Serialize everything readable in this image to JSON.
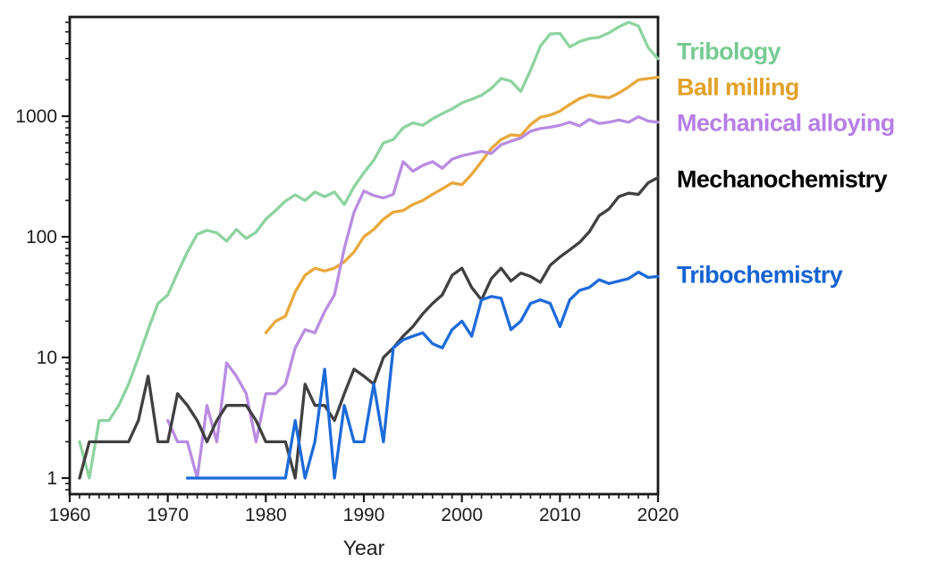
{
  "figure": {
    "background": "#ffffff"
  },
  "chart_data": {
    "type": "line",
    "title": "",
    "xlabel": "Year",
    "ylabel": "",
    "x_axis": {
      "min": 1960,
      "max": 2020,
      "major_ticks": [
        1960,
        1970,
        1980,
        1990,
        2000,
        2010,
        2020
      ],
      "major_tick_labels": [
        "1960",
        "1970",
        "1980",
        "1990",
        "2000",
        "2010",
        "2020"
      ],
      "minor_tick_interval_years": 1
    },
    "y_axis": {
      "scale": "log",
      "min": 0.74,
      "max": 6600,
      "major_ticks": [
        1,
        10,
        100,
        1000
      ],
      "major_tick_labels": [
        "1",
        "10",
        "100",
        "1000"
      ],
      "grid": false
    },
    "legend_position": "right-outside",
    "series": [
      {
        "name": "Tribology",
        "color": "#8dd3a0",
        "legend_color": "#76cb93",
        "start_year": 1961,
        "values": [
          2,
          1,
          3,
          3,
          4,
          6,
          10,
          17,
          28,
          33,
          50,
          75,
          105,
          113,
          108,
          92,
          115,
          97,
          109,
          140,
          165,
          198,
          223,
          200,
          235,
          215,
          235,
          185,
          260,
          340,
          430,
          600,
          640,
          800,
          880,
          840,
          950,
          1050,
          1150,
          1290,
          1380,
          1490,
          1700,
          2050,
          1950,
          1600,
          2400,
          3800,
          4800,
          4850,
          3750,
          4150,
          4400,
          4500,
          4900,
          5500,
          6000,
          5600,
          3700,
          3000
        ]
      },
      {
        "name": "Ball milling",
        "color": "#e7a83a",
        "legend_color": "#e1a128",
        "start_year": 1980,
        "values": [
          16,
          20,
          22,
          35,
          48,
          55,
          52,
          55,
          62,
          75,
          100,
          115,
          140,
          160,
          165,
          185,
          200,
          225,
          250,
          280,
          270,
          330,
          420,
          540,
          640,
          700,
          690,
          850,
          980,
          1020,
          1100,
          1250,
          1400,
          1500,
          1450,
          1420,
          1550,
          1750,
          2000,
          2050,
          2100
        ]
      },
      {
        "name": "Mechanical alloying",
        "color": "#b98ce2",
        "legend_color": "#b67ee6",
        "start_year": 1970,
        "values": [
          3,
          2,
          2,
          1,
          4,
          2,
          9,
          7,
          5,
          2,
          5,
          5,
          6,
          12,
          17,
          16,
          24,
          33,
          80,
          160,
          240,
          220,
          210,
          225,
          420,
          350,
          390,
          420,
          370,
          440,
          470,
          490,
          510,
          490,
          580,
          620,
          660,
          750,
          790,
          810,
          840,
          890,
          830,
          940,
          870,
          890,
          930,
          890,
          990,
          910,
          890
        ]
      },
      {
        "name": "Mechanochemistry",
        "color": "#404040",
        "legend_color": "#000000",
        "start_year": 1961,
        "values": [
          1,
          2,
          2,
          2,
          2,
          2,
          3,
          7,
          2,
          2,
          5,
          4,
          3,
          2,
          3,
          4,
          4,
          4,
          3,
          2,
          2,
          2,
          1,
          6,
          4,
          4,
          3,
          5,
          8,
          7,
          6,
          10,
          12,
          15,
          18,
          23,
          28,
          33,
          48,
          55,
          38,
          30,
          45,
          55,
          43,
          50,
          47,
          42,
          58,
          68,
          78,
          90,
          110,
          150,
          170,
          215,
          230,
          225,
          280,
          310
        ]
      },
      {
        "name": "Tribochemistry",
        "color": "#1d6bd9",
        "legend_color": "#1563d2",
        "start_year": 1972,
        "values": [
          1,
          1,
          1,
          1,
          1,
          1,
          1,
          1,
          1,
          1,
          1,
          3,
          1,
          2,
          8,
          1,
          4,
          2,
          2,
          6,
          2,
          12,
          14,
          15,
          16,
          13,
          12,
          17,
          20,
          15,
          30,
          32,
          31,
          17,
          20,
          28,
          30,
          28,
          18,
          30,
          36,
          38,
          44,
          41,
          43,
          45,
          51,
          46,
          47
        ]
      }
    ]
  }
}
